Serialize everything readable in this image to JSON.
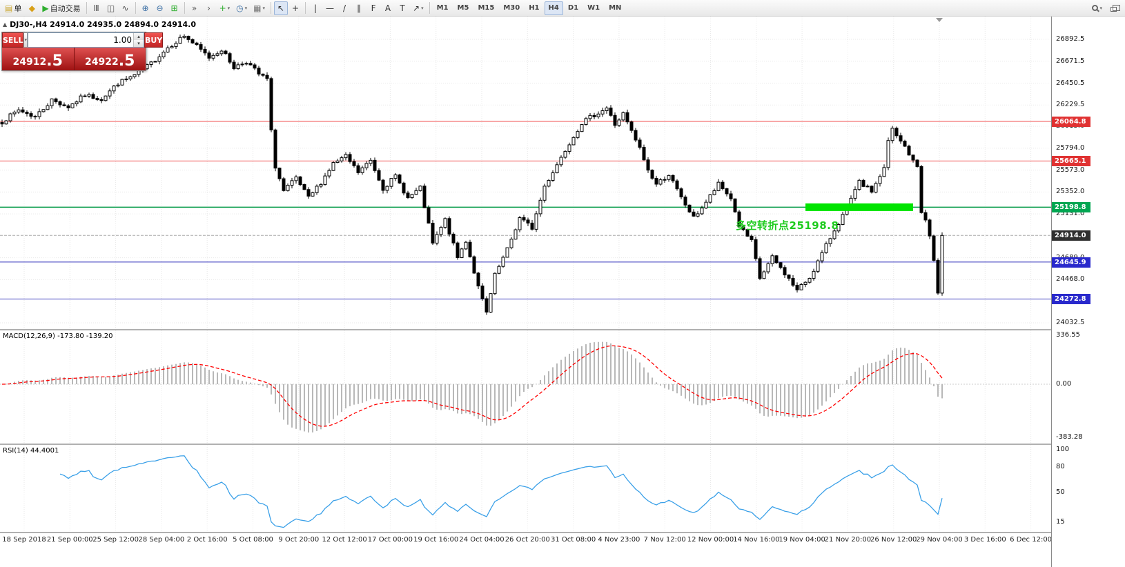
{
  "toolbar": {
    "items": [
      {
        "name": "new-order-button",
        "glyph": "▤",
        "color": "#caa62c",
        "label": "单"
      },
      {
        "name": "metaeditor-button",
        "glyph": "◆",
        "color": "#d8a018"
      },
      {
        "name": "auto-trading-button",
        "glyph": "▶",
        "color": "#2fae2f",
        "label": "自动交易"
      },
      {
        "kind": "sep"
      },
      {
        "name": "bar-chart-button",
        "glyph": "Ⅲ",
        "color": "#555555"
      },
      {
        "name": "candlestick-chart-button",
        "glyph": "◫",
        "color": "#555555"
      },
      {
        "name": "line-chart-button",
        "glyph": "∿",
        "color": "#555555"
      },
      {
        "kind": "sep"
      },
      {
        "name": "zoom-in-button",
        "glyph": "⊕",
        "color": "#3a6ea5"
      },
      {
        "name": "zoom-out-button",
        "glyph": "⊖",
        "color": "#3a6ea5"
      },
      {
        "name": "tile-windows-button",
        "glyph": "⊞",
        "color": "#2fae2f"
      },
      {
        "kind": "sep"
      },
      {
        "name": "auto-scroll-button",
        "glyph": "»",
        "color": "#555555"
      },
      {
        "name": "chart-shift-button",
        "glyph": "›",
        "color": "#555555"
      },
      {
        "name": "new-chart-button",
        "glyph": "+",
        "color": "#2fae2f",
        "caret": true
      },
      {
        "name": "profiles-button",
        "glyph": "◷",
        "color": "#3a6ea5",
        "caret": true
      },
      {
        "name": "templates-button",
        "glyph": "▦",
        "color": "#777777",
        "caret": true
      },
      {
        "kind": "sep"
      },
      {
        "name": "cursor-tool-button",
        "glyph": "↖",
        "color": "#333333",
        "active": true
      },
      {
        "name": "crosshair-tool-button",
        "glyph": "+",
        "color": "#333333"
      },
      {
        "kind": "sep"
      },
      {
        "name": "vertical-line-tool-button",
        "glyph": "|",
        "color": "#333333"
      },
      {
        "name": "horizontal-line-tool-button",
        "glyph": "—",
        "color": "#333333"
      },
      {
        "name": "trendline-tool-button",
        "glyph": "/",
        "color": "#333333"
      },
      {
        "name": "channel-tool-button",
        "glyph": "∥",
        "color": "#333333"
      },
      {
        "name": "fibonacci-tool-button",
        "glyph": "F",
        "color": "#333333"
      },
      {
        "name": "text-tool-button",
        "glyph": "A",
        "color": "#333333"
      },
      {
        "name": "label-tool-button",
        "glyph": "T",
        "color": "#333333"
      },
      {
        "name": "arrows-tool-button",
        "glyph": "↗",
        "color": "#333333",
        "caret": true
      },
      {
        "kind": "sep"
      },
      {
        "name": "timeframe-m1",
        "kind": "tf",
        "label": "M1"
      },
      {
        "name": "timeframe-m5",
        "kind": "tf",
        "label": "M5"
      },
      {
        "name": "timeframe-m15",
        "kind": "tf",
        "label": "M15"
      },
      {
        "name": "timeframe-m30",
        "kind": "tf",
        "label": "M30"
      },
      {
        "name": "timeframe-h1",
        "kind": "tf",
        "label": "H1"
      },
      {
        "name": "timeframe-h4",
        "kind": "tf",
        "label": "H4",
        "active": true
      },
      {
        "name": "timeframe-d1",
        "kind": "tf",
        "label": "D1"
      },
      {
        "name": "timeframe-w1",
        "kind": "tf",
        "label": "W1"
      },
      {
        "name": "timeframe-mn",
        "kind": "tf",
        "label": "MN"
      }
    ],
    "right_items": [
      {
        "name": "search-button",
        "icon": "magnifier",
        "caret": true
      },
      {
        "name": "windows-button",
        "icon": "windows"
      }
    ]
  },
  "chart": {
    "symbol_info": "DJ30-,H4 24914.0 24935.0 24894.0 24914.0",
    "trade_panel": {
      "sell_label": "SELL",
      "buy_label": "BUY",
      "volume": "1.00",
      "sell_price_main": "24912",
      "sell_price_big": ".5",
      "buy_price_main": "24922",
      "buy_price_big": ".5"
    },
    "annotation": "多空转折点25198.8",
    "annotation_color": "#1ecb1e",
    "current_price": 24914.0,
    "price_ticks": [
      26892.5,
      26671.5,
      26450.5,
      26229.5,
      26015.0,
      25794.0,
      25573.0,
      25352.0,
      25131.0,
      24689.0,
      24468.0,
      24032.5
    ],
    "levels": [
      {
        "value": 26064.8,
        "color": "#f05050",
        "width": 1
      },
      {
        "value": 25665.1,
        "color": "#f05050",
        "width": 1
      },
      {
        "value": 25198.8,
        "color": "#009944",
        "width": 1.4
      },
      {
        "value": 24645.9,
        "color": "#3333bb",
        "width": 1
      },
      {
        "value": 24272.8,
        "color": "#3333bb",
        "width": 1
      }
    ],
    "badges": [
      {
        "value": 26064.8,
        "label": "26064.8",
        "bg": "#e03232"
      },
      {
        "value": 25665.1,
        "label": "25665.1",
        "bg": "#e03232"
      },
      {
        "value": 25198.8,
        "label": "25198.8",
        "bg": "#00a651"
      },
      {
        "value": 24914.0,
        "label": "24914.0",
        "bg": "#2f2f2f"
      },
      {
        "value": 24645.9,
        "label": "24645.9",
        "bg": "#2929cc"
      },
      {
        "value": 24272.8,
        "label": "24272.8",
        "bg": "#2929cc"
      }
    ],
    "highlight": {
      "from_index": 194,
      "to_index": 220,
      "value": 25198.8,
      "color": "#00e400",
      "height": 11
    },
    "style": {
      "bull_fill": "#ffffff",
      "bear_fill": "#000000",
      "outline": "#000000"
    },
    "candle_count": 228,
    "price_path_anchors": [
      [
        0,
        26060
      ],
      [
        4,
        26180
      ],
      [
        8,
        26110
      ],
      [
        12,
        26280
      ],
      [
        16,
        26210
      ],
      [
        20,
        26330
      ],
      [
        24,
        26290
      ],
      [
        28,
        26450
      ],
      [
        32,
        26530
      ],
      [
        36,
        26650
      ],
      [
        40,
        26810
      ],
      [
        44,
        26930
      ],
      [
        47,
        26820
      ],
      [
        50,
        26710
      ],
      [
        53,
        26790
      ],
      [
        56,
        26610
      ],
      [
        59,
        26670
      ],
      [
        62,
        26540
      ],
      [
        64,
        26490
      ],
      [
        65,
        25960
      ],
      [
        66,
        25610
      ],
      [
        68,
        25360
      ],
      [
        71,
        25490
      ],
      [
        74,
        25290
      ],
      [
        77,
        25450
      ],
      [
        80,
        25640
      ],
      [
        83,
        25710
      ],
      [
        86,
        25550
      ],
      [
        89,
        25670
      ],
      [
        92,
        25390
      ],
      [
        95,
        25510
      ],
      [
        98,
        25290
      ],
      [
        101,
        25390
      ],
      [
        104,
        24830
      ],
      [
        107,
        25070
      ],
      [
        110,
        24690
      ],
      [
        112,
        24860
      ],
      [
        115,
        24390
      ],
      [
        117,
        24130
      ],
      [
        119,
        24510
      ],
      [
        122,
        24770
      ],
      [
        125,
        25090
      ],
      [
        128,
        24990
      ],
      [
        131,
        25410
      ],
      [
        134,
        25630
      ],
      [
        137,
        25850
      ],
      [
        140,
        26050
      ],
      [
        143,
        26130
      ],
      [
        146,
        26200
      ],
      [
        148,
        26030
      ],
      [
        150,
        26140
      ],
      [
        152,
        25960
      ],
      [
        154,
        25790
      ],
      [
        156,
        25570
      ],
      [
        158,
        25430
      ],
      [
        161,
        25530
      ],
      [
        164,
        25290
      ],
      [
        167,
        25090
      ],
      [
        170,
        25250
      ],
      [
        173,
        25430
      ],
      [
        176,
        25290
      ],
      [
        178,
        25010
      ],
      [
        181,
        24850
      ],
      [
        183,
        24480
      ],
      [
        186,
        24690
      ],
      [
        189,
        24530
      ],
      [
        192,
        24360
      ],
      [
        195,
        24490
      ],
      [
        198,
        24730
      ],
      [
        201,
        24970
      ],
      [
        204,
        25190
      ],
      [
        207,
        25450
      ],
      [
        210,
        25360
      ],
      [
        213,
        25590
      ],
      [
        214,
        25860
      ],
      [
        215,
        25990
      ],
      [
        216,
        25910
      ],
      [
        218,
        25810
      ],
      [
        220,
        25660
      ],
      [
        221,
        25610
      ],
      [
        222,
        25160
      ],
      [
        223,
        25060
      ],
      [
        224,
        24910
      ],
      [
        225,
        24660
      ],
      [
        226,
        24330
      ],
      [
        227,
        24914
      ]
    ]
  },
  "macd": {
    "label": "MACD(12,26,9) -173.80 -139.20",
    "scale_labels": [
      "336.55",
      "0.00",
      "-383.28"
    ],
    "hist_color": "#b8b8b8",
    "signal_color": "#ff0000"
  },
  "rsi": {
    "label": "RSI(14) 44.4001",
    "scale": [
      {
        "value": 100,
        "label": "100"
      },
      {
        "value": 80,
        "label": "80"
      },
      {
        "value": 50,
        "label": "50"
      },
      {
        "value": 15,
        "label": "15"
      }
    ],
    "line_color": "#3aa0e8"
  },
  "timeline": [
    "18 Sep 2018",
    "21 Sep 00:00",
    "25 Sep 12:00",
    "28 Sep 04:00",
    "2 Oct 16:00",
    "5 Oct 08:00",
    "9 Oct 20:00",
    "12 Oct 12:00",
    "17 Oct 00:00",
    "19 Oct 16:00",
    "24 Oct 04:00",
    "26 Oct 20:00",
    "31 Oct 08:00",
    "4 Nov 23:00",
    "7 Nov 12:00",
    "12 Nov 00:00",
    "14 Nov 16:00",
    "19 Nov 04:00",
    "21 Nov 20:00",
    "26 Nov 12:00",
    "29 Nov 04:00",
    "3 Dec 16:00",
    "6 Dec 12:00"
  ]
}
